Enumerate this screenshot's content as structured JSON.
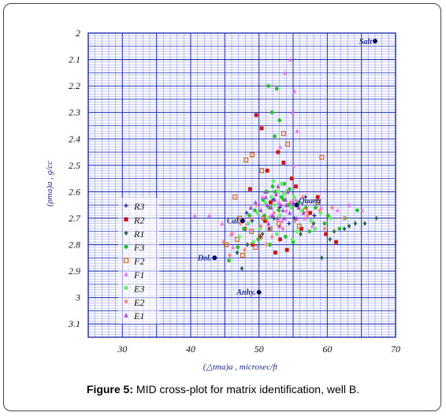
{
  "caption": {
    "label": "Figure 5:",
    "text": " MID cross-plot for matrix identification, well B."
  },
  "chart_data": {
    "type": "scatter",
    "xlabel": "(△tma)a , microsec/ft",
    "ylabel": "(ρma)a , g/cc",
    "xlim": [
      25,
      70
    ],
    "ylim": [
      3.15,
      2.0
    ],
    "y_reversed": true,
    "x_ticks": [
      30,
      40,
      50,
      60,
      70
    ],
    "y_ticks": [
      2,
      2.1,
      2.2,
      2.3,
      2.4,
      2.5,
      2.6,
      2.7,
      2.8,
      2.9,
      3,
      3.1
    ],
    "grid": true,
    "legend_position": "left",
    "colors": {
      "grid_major": "#1f2fb0",
      "grid_minor": "#8f98e6",
      "reference": "#0b0b5c",
      "R3": "#1c2a8c",
      "R2": "#cc1111",
      "R1": "#2a6a4a",
      "F3": "#22c022",
      "F2": "#e06010",
      "F1": "#f070f0",
      "E3": "#66ee66",
      "E2": "#ff8080",
      "E1": "#aa44dd"
    },
    "reference_points": [
      {
        "label": "Salt",
        "x": 67.0,
        "y": 2.03
      },
      {
        "label": "Quartz",
        "x": 55.5,
        "y": 2.65
      },
      {
        "label": "Cal.",
        "x": 47.6,
        "y": 2.71
      },
      {
        "label": "Dol.",
        "x": 43.5,
        "y": 2.85
      },
      {
        "label": "Anhy.",
        "x": 50.0,
        "y": 2.98
      }
    ],
    "series": [
      {
        "name": "R3",
        "marker": "plus",
        "points": [
          [
            48.2,
            2.68
          ],
          [
            52.1,
            2.63
          ],
          [
            53.0,
            2.66
          ],
          [
            55.2,
            2.7
          ],
          [
            51.5,
            2.74
          ],
          [
            49.0,
            2.71
          ],
          [
            56.8,
            2.62
          ],
          [
            54.4,
            2.72
          ],
          [
            50.2,
            2.77
          ],
          [
            58.1,
            2.69
          ]
        ]
      },
      {
        "name": "R2",
        "marker": "square",
        "points": [
          [
            49.6,
            2.31
          ],
          [
            50.4,
            2.36
          ],
          [
            52.8,
            2.45
          ],
          [
            51.2,
            2.52
          ],
          [
            53.6,
            2.49
          ],
          [
            54.8,
            2.55
          ],
          [
            48.7,
            2.59
          ],
          [
            55.4,
            2.58
          ],
          [
            50.9,
            2.71
          ],
          [
            53.1,
            2.78
          ],
          [
            56.2,
            2.74
          ],
          [
            57.5,
            2.68
          ],
          [
            49.1,
            2.8
          ],
          [
            52.4,
            2.83
          ],
          [
            59.8,
            2.76
          ],
          [
            61.3,
            2.79
          ],
          [
            54.1,
            2.82
          ],
          [
            47.9,
            2.74
          ],
          [
            58.6,
            2.62
          ],
          [
            51.7,
            2.64
          ]
        ]
      },
      {
        "name": "R1",
        "marker": "diamond",
        "points": [
          [
            47.5,
            2.89
          ],
          [
            46.8,
            2.83
          ],
          [
            48.3,
            2.8
          ],
          [
            59.2,
            2.85
          ],
          [
            61.0,
            2.75
          ],
          [
            62.5,
            2.74
          ],
          [
            64.1,
            2.72
          ],
          [
            65.5,
            2.72
          ],
          [
            67.2,
            2.7
          ],
          [
            63.2,
            2.73
          ],
          [
            60.4,
            2.78
          ],
          [
            58.0,
            2.72
          ],
          [
            56.1,
            2.76
          ],
          [
            50.5,
            2.76
          ],
          [
            52.2,
            2.7
          ]
        ]
      },
      {
        "name": "F3",
        "marker": "circle",
        "points": [
          [
            51.4,
            2.2
          ],
          [
            52.6,
            2.21
          ],
          [
            51.9,
            2.3
          ],
          [
            53.0,
            2.33
          ],
          [
            52.3,
            2.39
          ],
          [
            53.7,
            2.57
          ],
          [
            52.0,
            2.58
          ],
          [
            51.2,
            2.6
          ],
          [
            54.5,
            2.59
          ],
          [
            53.3,
            2.62
          ],
          [
            50.6,
            2.63
          ],
          [
            55.8,
            2.64
          ],
          [
            49.4,
            2.67
          ],
          [
            56.9,
            2.66
          ],
          [
            48.6,
            2.69
          ],
          [
            58.3,
            2.66
          ],
          [
            60.1,
            2.69
          ],
          [
            62.6,
            2.7
          ],
          [
            64.4,
            2.67
          ],
          [
            47.8,
            2.74
          ],
          [
            49.9,
            2.78
          ],
          [
            51.6,
            2.8
          ],
          [
            53.9,
            2.77
          ],
          [
            55.0,
            2.79
          ],
          [
            57.4,
            2.75
          ],
          [
            59.6,
            2.72
          ],
          [
            61.8,
            2.74
          ],
          [
            45.6,
            2.86
          ],
          [
            46.9,
            2.81
          ],
          [
            54.3,
            2.65
          ],
          [
            52.9,
            2.67
          ],
          [
            50.8,
            2.69
          ],
          [
            52.4,
            2.6
          ],
          [
            53.6,
            2.63
          ],
          [
            51.5,
            2.66
          ]
        ]
      },
      {
        "name": "F2",
        "marker": "square-open",
        "points": [
          [
            49.0,
            2.46
          ],
          [
            48.1,
            2.48
          ],
          [
            50.4,
            2.52
          ],
          [
            53.6,
            2.38
          ],
          [
            54.2,
            2.42
          ],
          [
            59.2,
            2.47
          ],
          [
            46.5,
            2.62
          ],
          [
            47.2,
            2.7
          ],
          [
            48.9,
            2.75
          ],
          [
            50.2,
            2.77
          ],
          [
            49.5,
            2.81
          ],
          [
            51.6,
            2.74
          ],
          [
            55.9,
            2.73
          ],
          [
            56.8,
            2.67
          ],
          [
            58.6,
            2.64
          ],
          [
            46.8,
            2.78
          ],
          [
            45.2,
            2.8
          ],
          [
            47.6,
            2.84
          ],
          [
            52.9,
            2.72
          ],
          [
            50.7,
            2.7
          ]
        ]
      },
      {
        "name": "F1",
        "marker": "triangle",
        "points": [
          [
            54.6,
            2.1
          ],
          [
            53.8,
            2.15
          ],
          [
            55.2,
            2.22
          ],
          [
            54.9,
            2.3
          ],
          [
            55.6,
            2.37
          ],
          [
            53.1,
            2.43
          ],
          [
            55.1,
            2.5
          ],
          [
            40.6,
            2.69
          ],
          [
            42.7,
            2.69
          ],
          [
            44.6,
            2.72
          ],
          [
            45.9,
            2.76
          ],
          [
            46.2,
            2.81
          ],
          [
            48.3,
            2.72
          ],
          [
            51.7,
            2.69
          ],
          [
            53.4,
            2.71
          ],
          [
            56.7,
            2.7
          ],
          [
            59.1,
            2.66
          ],
          [
            61.5,
            2.67
          ],
          [
            63.2,
            2.65
          ],
          [
            65.1,
            2.67
          ],
          [
            57.8,
            2.73
          ],
          [
            50.5,
            2.62
          ],
          [
            52.9,
            2.64
          ],
          [
            54.0,
            2.67
          ],
          [
            55.4,
            2.63
          ]
        ]
      },
      {
        "name": "E3",
        "marker": "circle",
        "points": [
          [
            52.1,
            2.56
          ],
          [
            53.3,
            2.57
          ],
          [
            52.8,
            2.6
          ],
          [
            54.0,
            2.6
          ],
          [
            51.8,
            2.62
          ],
          [
            53.6,
            2.61
          ],
          [
            55.1,
            2.62
          ],
          [
            50.9,
            2.64
          ],
          [
            52.3,
            2.65
          ],
          [
            54.7,
            2.66
          ],
          [
            56.2,
            2.67
          ],
          [
            49.8,
            2.68
          ],
          [
            51.3,
            2.7
          ],
          [
            53.1,
            2.69
          ],
          [
            57.6,
            2.71
          ],
          [
            59.0,
            2.68
          ],
          [
            60.4,
            2.7
          ],
          [
            48.5,
            2.72
          ],
          [
            50.1,
            2.74
          ],
          [
            55.6,
            2.75
          ],
          [
            58.2,
            2.74
          ],
          [
            47.1,
            2.77
          ],
          [
            49.2,
            2.79
          ],
          [
            52.6,
            2.76
          ],
          [
            54.9,
            2.78
          ]
        ]
      },
      {
        "name": "E2",
        "marker": "diamond",
        "points": [
          [
            44.8,
            2.79
          ],
          [
            46.1,
            2.76
          ],
          [
            47.3,
            2.72
          ],
          [
            48.8,
            2.7
          ],
          [
            50.3,
            2.73
          ],
          [
            51.9,
            2.77
          ],
          [
            53.5,
            2.74
          ],
          [
            55.3,
            2.71
          ],
          [
            57.1,
            2.69
          ],
          [
            58.9,
            2.67
          ],
          [
            60.7,
            2.66
          ],
          [
            62.4,
            2.7
          ],
          [
            49.6,
            2.65
          ],
          [
            52.2,
            2.68
          ],
          [
            54.6,
            2.64
          ],
          [
            56.4,
            2.62
          ],
          [
            47.9,
            2.82
          ],
          [
            45.7,
            2.84
          ],
          [
            51.1,
            2.8
          ],
          [
            59.6,
            2.74
          ]
        ]
      },
      {
        "name": "E1",
        "marker": "triangle",
        "points": [
          [
            51.0,
            2.62
          ],
          [
            52.5,
            2.61
          ],
          [
            53.9,
            2.63
          ],
          [
            55.0,
            2.64
          ],
          [
            51.8,
            2.66
          ],
          [
            53.2,
            2.65
          ],
          [
            54.5,
            2.68
          ],
          [
            50.3,
            2.67
          ],
          [
            52.0,
            2.69
          ],
          [
            53.7,
            2.7
          ],
          [
            49.5,
            2.64
          ],
          [
            55.8,
            2.66
          ],
          [
            50.9,
            2.6
          ],
          [
            52.8,
            2.58
          ],
          [
            54.2,
            2.6
          ],
          [
            51.4,
            2.72
          ],
          [
            53.0,
            2.73
          ],
          [
            55.5,
            2.7
          ],
          [
            48.8,
            2.66
          ],
          [
            56.5,
            2.68
          ],
          [
            52.3,
            2.63
          ],
          [
            53.5,
            2.67
          ],
          [
            51.2,
            2.65
          ],
          [
            54.0,
            2.65
          ],
          [
            52.7,
            2.7
          ]
        ]
      }
    ]
  }
}
